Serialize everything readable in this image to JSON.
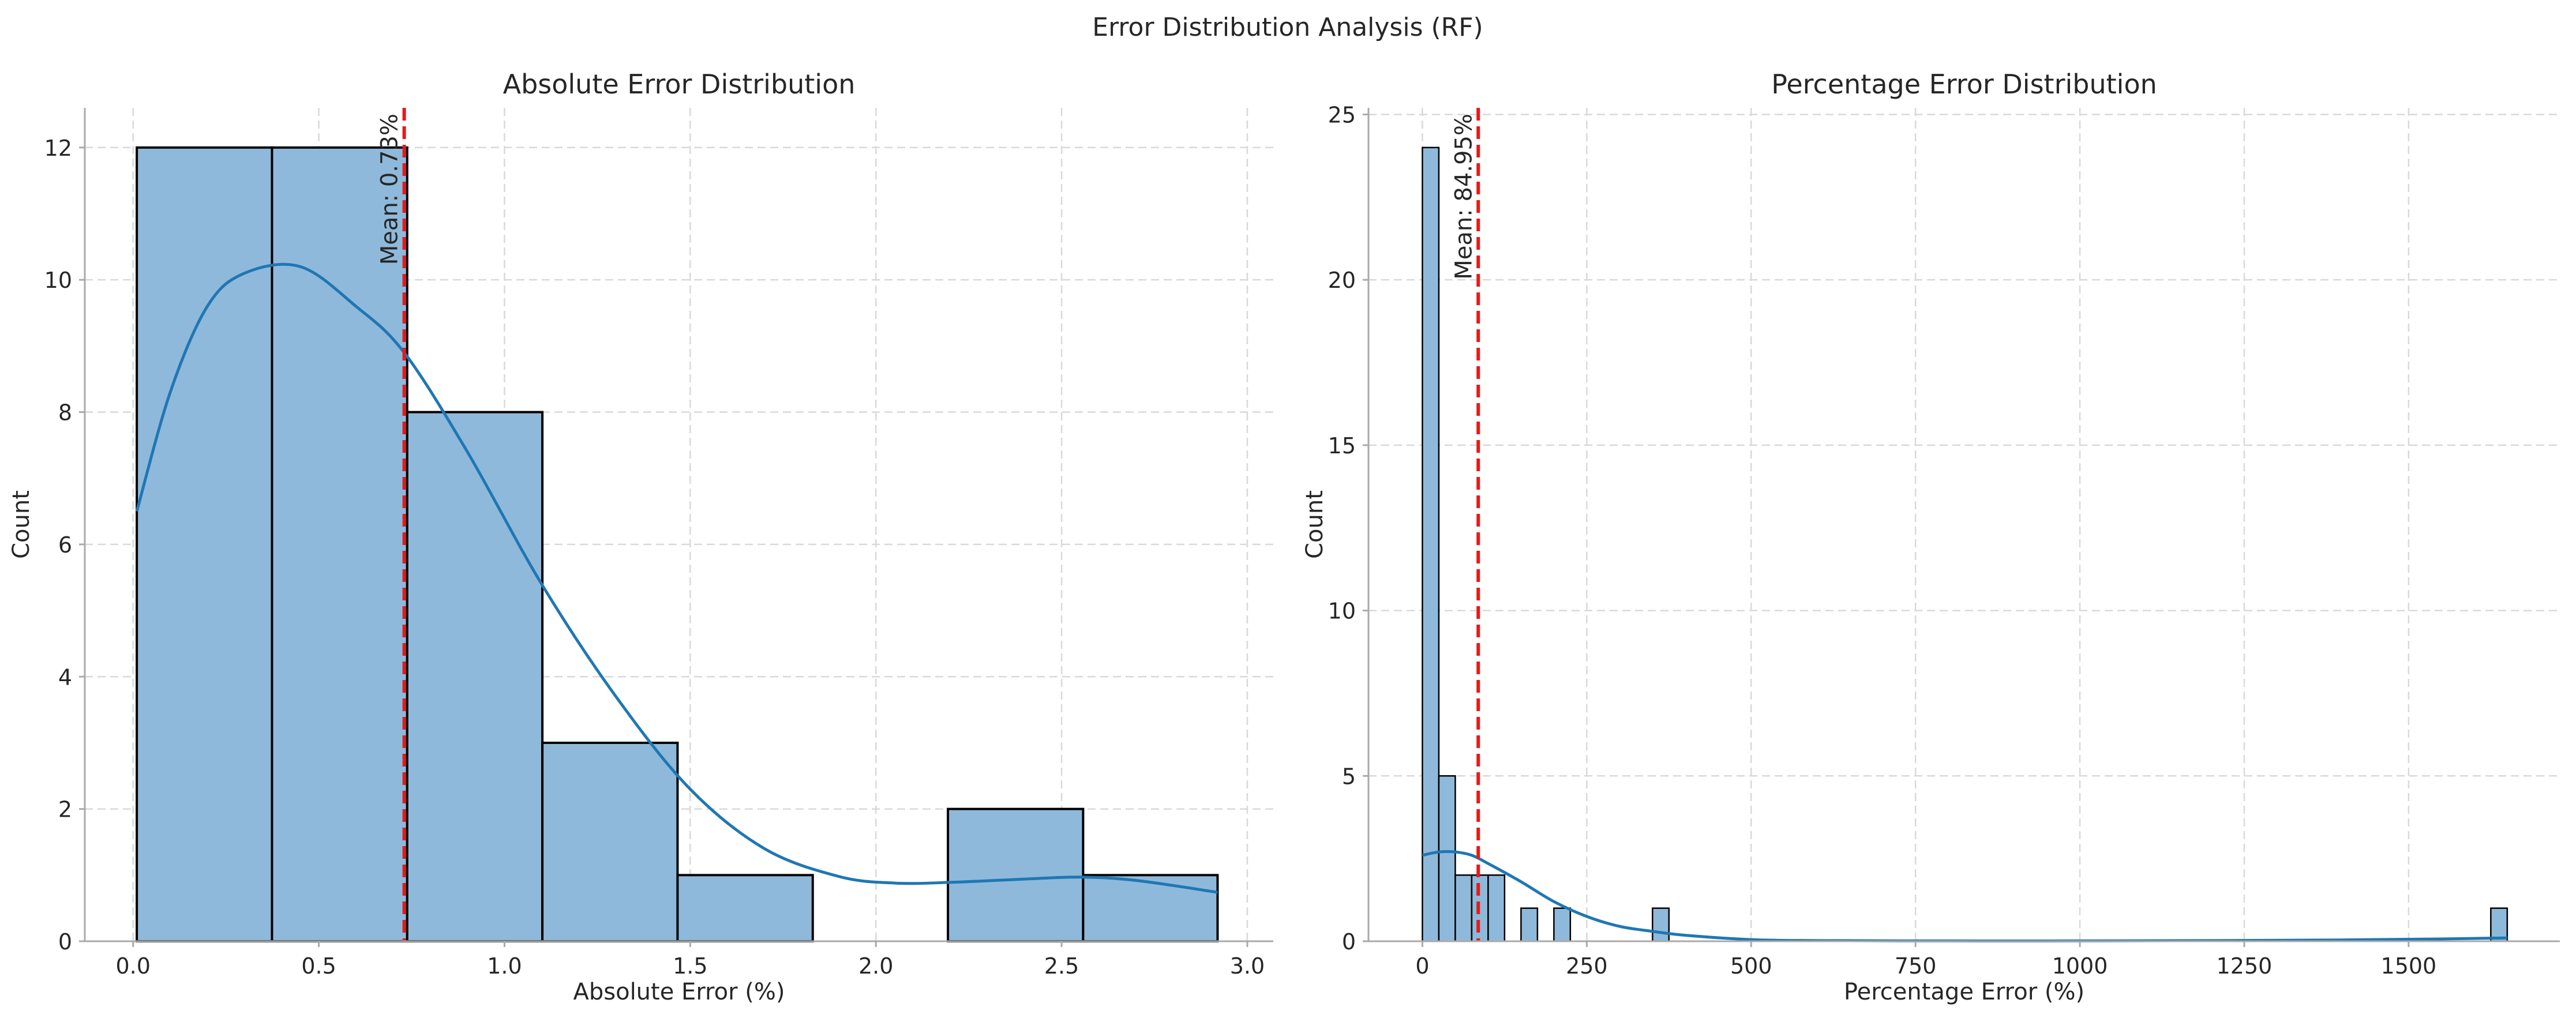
{
  "figure": {
    "suptitle": "Error Distribution Analysis (RF)"
  },
  "colors": {
    "bar_fill": "#8fb9da",
    "bar_edge": "#000000",
    "kde_line": "#1f77b4",
    "mean_line": "#e41a1c",
    "grid": "#d9d9d9",
    "spine": "#aaaaaa"
  },
  "chart_data": [
    {
      "type": "bar",
      "subtype": "histogram",
      "title": "Absolute Error Distribution",
      "xlabel": "Absolute Error (%)",
      "ylabel": "Count",
      "xlim": [
        -0.13,
        3.07
      ],
      "ylim": [
        0,
        12.6
      ],
      "xticks": [
        0.0,
        0.5,
        1.0,
        1.5,
        2.0,
        2.5,
        3.0
      ],
      "xtick_labels": [
        "0.0",
        "0.5",
        "1.0",
        "1.5",
        "2.0",
        "2.5",
        "3.0"
      ],
      "yticks": [
        0,
        2,
        4,
        6,
        8,
        10,
        12
      ],
      "ytick_labels": [
        "0",
        "2",
        "4",
        "6",
        "8",
        "10",
        "12"
      ],
      "bins": [
        {
          "x0": 0.01,
          "x1": 0.374,
          "count": 12
        },
        {
          "x0": 0.374,
          "x1": 0.738,
          "count": 12
        },
        {
          "x0": 0.738,
          "x1": 1.102,
          "count": 8
        },
        {
          "x0": 1.102,
          "x1": 1.466,
          "count": 3
        },
        {
          "x0": 1.466,
          "x1": 1.83,
          "count": 1
        },
        {
          "x0": 1.83,
          "x1": 2.194,
          "count": 0
        },
        {
          "x0": 2.194,
          "x1": 2.558,
          "count": 2
        },
        {
          "x0": 2.558,
          "x1": 2.92,
          "count": 1
        }
      ],
      "kde": {
        "x": [
          0.01,
          0.1,
          0.2,
          0.3,
          0.45,
          0.6,
          0.73,
          0.9,
          1.1,
          1.3,
          1.5,
          1.7,
          1.9,
          2.05,
          2.2,
          2.4,
          2.55,
          2.7,
          2.92
        ],
        "y": [
          6.5,
          8.3,
          9.6,
          10.1,
          10.2,
          9.6,
          8.9,
          7.4,
          5.4,
          3.7,
          2.3,
          1.4,
          0.98,
          0.88,
          0.89,
          0.94,
          0.97,
          0.92,
          0.74
        ]
      },
      "mean": {
        "value": 0.73,
        "label": "Mean: 0.73%"
      },
      "grid": true
    },
    {
      "type": "bar",
      "subtype": "histogram",
      "title": "Percentage Error Distribution",
      "xlabel": "Percentage Error (%)",
      "ylabel": "Count",
      "xlim": [
        -82,
        1730
      ],
      "ylim": [
        0,
        25.2
      ],
      "xticks": [
        0,
        250,
        500,
        750,
        1000,
        1250,
        1500
      ],
      "xtick_labels": [
        "0",
        "250",
        "500",
        "750",
        "1000",
        "1250",
        "1500"
      ],
      "yticks": [
        0,
        5,
        10,
        15,
        20,
        25
      ],
      "ytick_labels": [
        "0",
        "5",
        "10",
        "15",
        "20",
        "25"
      ],
      "bins": [
        {
          "x0": 0,
          "x1": 25,
          "count": 24
        },
        {
          "x0": 25,
          "x1": 50,
          "count": 5
        },
        {
          "x0": 50,
          "x1": 75,
          "count": 2
        },
        {
          "x0": 75,
          "x1": 100,
          "count": 2
        },
        {
          "x0": 100,
          "x1": 125,
          "count": 2
        },
        {
          "x0": 150,
          "x1": 175,
          "count": 1
        },
        {
          "x0": 200,
          "x1": 225,
          "count": 1
        },
        {
          "x0": 350,
          "x1": 375,
          "count": 1
        },
        {
          "x0": 1625,
          "x1": 1650,
          "count": 1
        }
      ],
      "kde": {
        "x": [
          0,
          25,
          50,
          75,
          100,
          150,
          200,
          250,
          300,
          350,
          400,
          500,
          600,
          800,
          1000,
          1200,
          1400,
          1550,
          1650
        ],
        "y": [
          2.6,
          2.7,
          2.7,
          2.6,
          2.35,
          1.8,
          1.2,
          0.75,
          0.45,
          0.3,
          0.18,
          0.05,
          0.02,
          0.01,
          0.01,
          0.02,
          0.04,
          0.07,
          0.1
        ]
      },
      "mean": {
        "value": 84.95,
        "label": "Mean: 84.95%"
      },
      "grid": true
    }
  ]
}
